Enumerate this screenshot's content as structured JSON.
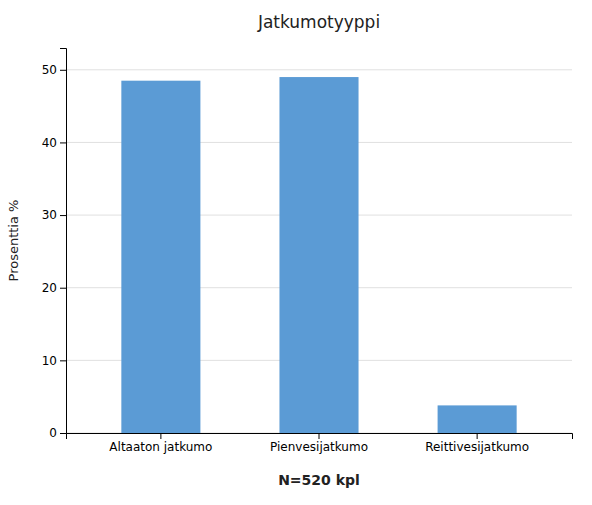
{
  "chart_data": {
    "type": "bar",
    "title": "Jatkumotyyppi",
    "categories": [
      "Altaaton jatkumo",
      "Pienvesijatkumo",
      "Reittivesijatkumo"
    ],
    "values": [
      48.5,
      49.0,
      3.8
    ],
    "color": "#5B9BD5",
    "ylabel": "Prosenttia %",
    "xlabel": "N=520 kpl",
    "ylim": [
      0,
      53
    ],
    "yticks": [
      0,
      10,
      20,
      30,
      40,
      50
    ],
    "grid": true
  }
}
